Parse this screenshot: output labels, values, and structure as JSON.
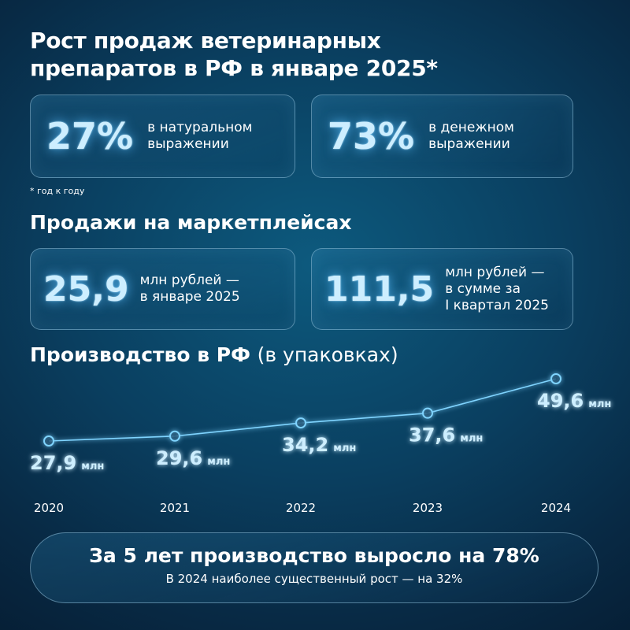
{
  "header": {
    "title_line1": "Рост продаж ветеринарных",
    "title_line2": "препаратов в РФ в январе 2025*"
  },
  "stats": [
    {
      "value": "27%",
      "desc": "в натуральном\nвыражении"
    },
    {
      "value": "73%",
      "desc": "в денежном\nвыражении"
    }
  ],
  "footnote": "* год к году",
  "marketplaces": {
    "title": "Продажи на маркетплейсах",
    "items": [
      {
        "value": "25,9",
        "desc": "млн рублей —\nв январе 2025"
      },
      {
        "value": "111,5",
        "desc": "млн рублей —\nв сумме за\nI квартал 2025"
      }
    ]
  },
  "production": {
    "title_bold": "Производство в РФ",
    "title_light": "(в упаковках)"
  },
  "chart_data": {
    "type": "line",
    "categories": [
      "2020",
      "2021",
      "2022",
      "2023",
      "2024"
    ],
    "values": [
      27.9,
      29.6,
      34.2,
      37.6,
      49.6
    ],
    "value_labels": [
      "27,9",
      "29,6",
      "34,2",
      "37,6",
      "49,6"
    ],
    "unit": "млн",
    "grid": false,
    "color": "#7fd4ff"
  },
  "summary": {
    "main": "За 5 лет производство выросло на 78%",
    "sub": "В 2024 наиболее существенный рост — на 32%"
  },
  "colors": {
    "background": "#0a3f60",
    "accent": "#7fd4ff",
    "card_border": "#a9d6ef"
  }
}
